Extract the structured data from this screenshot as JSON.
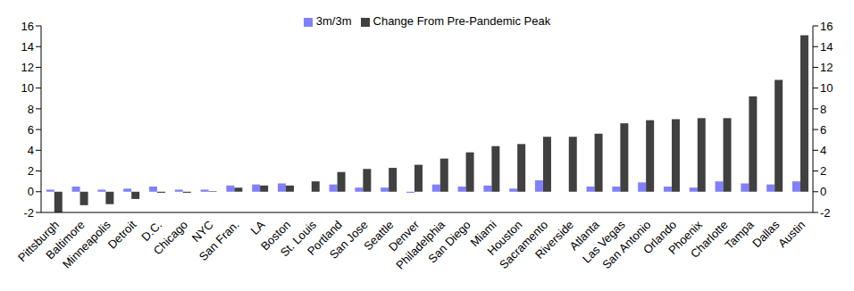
{
  "chart_data": {
    "type": "bar",
    "categories": [
      "Pittsburgh",
      "Baltimore",
      "Minneapolis",
      "Detroit",
      "D.C.",
      "Chicago",
      "NYC",
      "San Fran.",
      "LA",
      "Boston",
      "St. Louis",
      "Portland",
      "San Jose",
      "Seattle",
      "Denver",
      "Philadelphia",
      "San Diego",
      "Miami",
      "Houston",
      "Sacramento",
      "Riverside",
      "Atlanta",
      "Las Vegas",
      "San Antonio",
      "Orlando",
      "Phoenix",
      "Charlotte",
      "Tampa",
      "Dallas",
      "Austin"
    ],
    "series": [
      {
        "name": "3m/3m",
        "color": "#8080ff",
        "values": [
          0.2,
          0.5,
          0.2,
          0.3,
          0.5,
          0.2,
          0.2,
          0.6,
          0.7,
          0.8,
          0.0,
          0.7,
          0.4,
          0.4,
          -0.1,
          0.7,
          0.5,
          0.6,
          0.3,
          1.1,
          0.0,
          0.5,
          0.5,
          0.9,
          0.5,
          0.4,
          1.0,
          0.8,
          0.7,
          1.0
        ]
      },
      {
        "name": "Change From Pre-Pandemic Peak",
        "color": "#404040",
        "values": [
          -2.0,
          -1.3,
          -1.2,
          -0.7,
          -0.1,
          -0.1,
          0.05,
          0.4,
          0.6,
          0.6,
          1.0,
          1.9,
          2.2,
          2.3,
          2.6,
          3.2,
          3.8,
          4.4,
          4.6,
          5.3,
          5.3,
          5.6,
          6.6,
          6.9,
          7.0,
          7.1,
          7.1,
          9.2,
          10.8,
          15.1
        ]
      }
    ],
    "ylim": [
      -2,
      16
    ],
    "yticks": [
      -2,
      0,
      2,
      4,
      6,
      8,
      10,
      12,
      14,
      16
    ],
    "y2lim": [
      -2,
      16
    ],
    "y2ticks": [
      -2,
      0,
      2,
      4,
      6,
      8,
      10,
      12,
      14,
      16
    ],
    "grid": false,
    "legend": "top"
  }
}
